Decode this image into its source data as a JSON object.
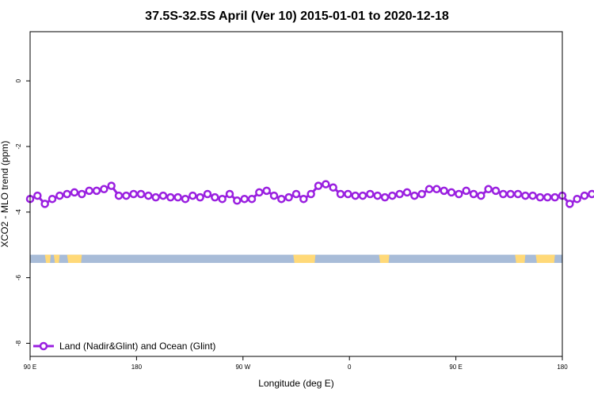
{
  "chart_data": {
    "type": "line",
    "title": "37.5S-32.5S April (Ver 10)   2015-01-01 to 2020-12-18",
    "xlabel": "Longitude (deg E)",
    "ylabel": "XCO2 - MLO trend (ppm)",
    "xlim": [
      90,
      450
    ],
    "ylim": [
      -8.4,
      1.5
    ],
    "x_ticks": [
      {
        "value": 90,
        "label": "90 E"
      },
      {
        "value": 180,
        "label": "180"
      },
      {
        "value": 270,
        "label": "90 W"
      },
      {
        "value": 360,
        "label": "0"
      },
      {
        "value": 450,
        "label": "90 E"
      },
      {
        "value": 540,
        "label": "180"
      }
    ],
    "y_ticks": [
      {
        "value": 0,
        "label": "0"
      },
      {
        "value": -2,
        "label": "-2"
      },
      {
        "value": -4,
        "label": "-4"
      },
      {
        "value": -6,
        "label": "-6"
      },
      {
        "value": -8,
        "label": "-8"
      }
    ],
    "x_ticks_domain": [
      90,
      540
    ],
    "series": [
      {
        "name": "Land (Nadir&Glint) and Ocean (Glint)",
        "color": "#9a20e0",
        "x_start": 90,
        "x_step": 5,
        "values": [
          -3.6,
          -3.5,
          -3.75,
          -3.6,
          -3.5,
          -3.45,
          -3.4,
          -3.45,
          -3.35,
          -3.35,
          -3.3,
          -3.2,
          -3.5,
          -3.5,
          -3.45,
          -3.45,
          -3.5,
          -3.55,
          -3.5,
          -3.55,
          -3.55,
          -3.6,
          -3.5,
          -3.55,
          -3.45,
          -3.55,
          -3.6,
          -3.45,
          -3.65,
          -3.6,
          -3.6,
          -3.4,
          -3.35,
          -3.5,
          -3.6,
          -3.55,
          -3.45,
          -3.6,
          -3.45,
          -3.2,
          -3.15,
          -3.25,
          -3.45,
          -3.45,
          -3.5,
          -3.5,
          -3.45,
          -3.5,
          -3.55,
          -3.5,
          -3.45,
          -3.4,
          -3.5,
          -3.45,
          -3.3,
          -3.3,
          -3.35,
          -3.4,
          -3.45,
          -3.35,
          -3.45,
          -3.5,
          -3.3,
          -3.35,
          -3.45,
          -3.45,
          -3.45,
          -3.5,
          -3.5,
          -3.55,
          -3.55,
          -3.55,
          -3.5,
          -3.75,
          -3.6,
          -3.5,
          -3.45,
          -3.4,
          -3.45,
          -3.35,
          -3.35,
          -3.3,
          -3.2,
          -3.45,
          -3.5,
          -3.45,
          -3.45,
          -3.5,
          -3.5,
          -3.5
        ]
      }
    ],
    "legend_position": "bottom-left",
    "grid": false,
    "map_strip": {
      "y_top": -5.3,
      "y_bottom": -5.55,
      "ocean_color": "#a8bcd8",
      "land_color": "#ffd978",
      "land_ranges": [
        [
          100,
          104
        ],
        [
          106,
          110
        ],
        [
          115,
          125
        ],
        [
          268,
          283
        ],
        [
          326,
          333
        ],
        [
          418,
          425
        ],
        [
          432,
          445
        ]
      ]
    }
  }
}
